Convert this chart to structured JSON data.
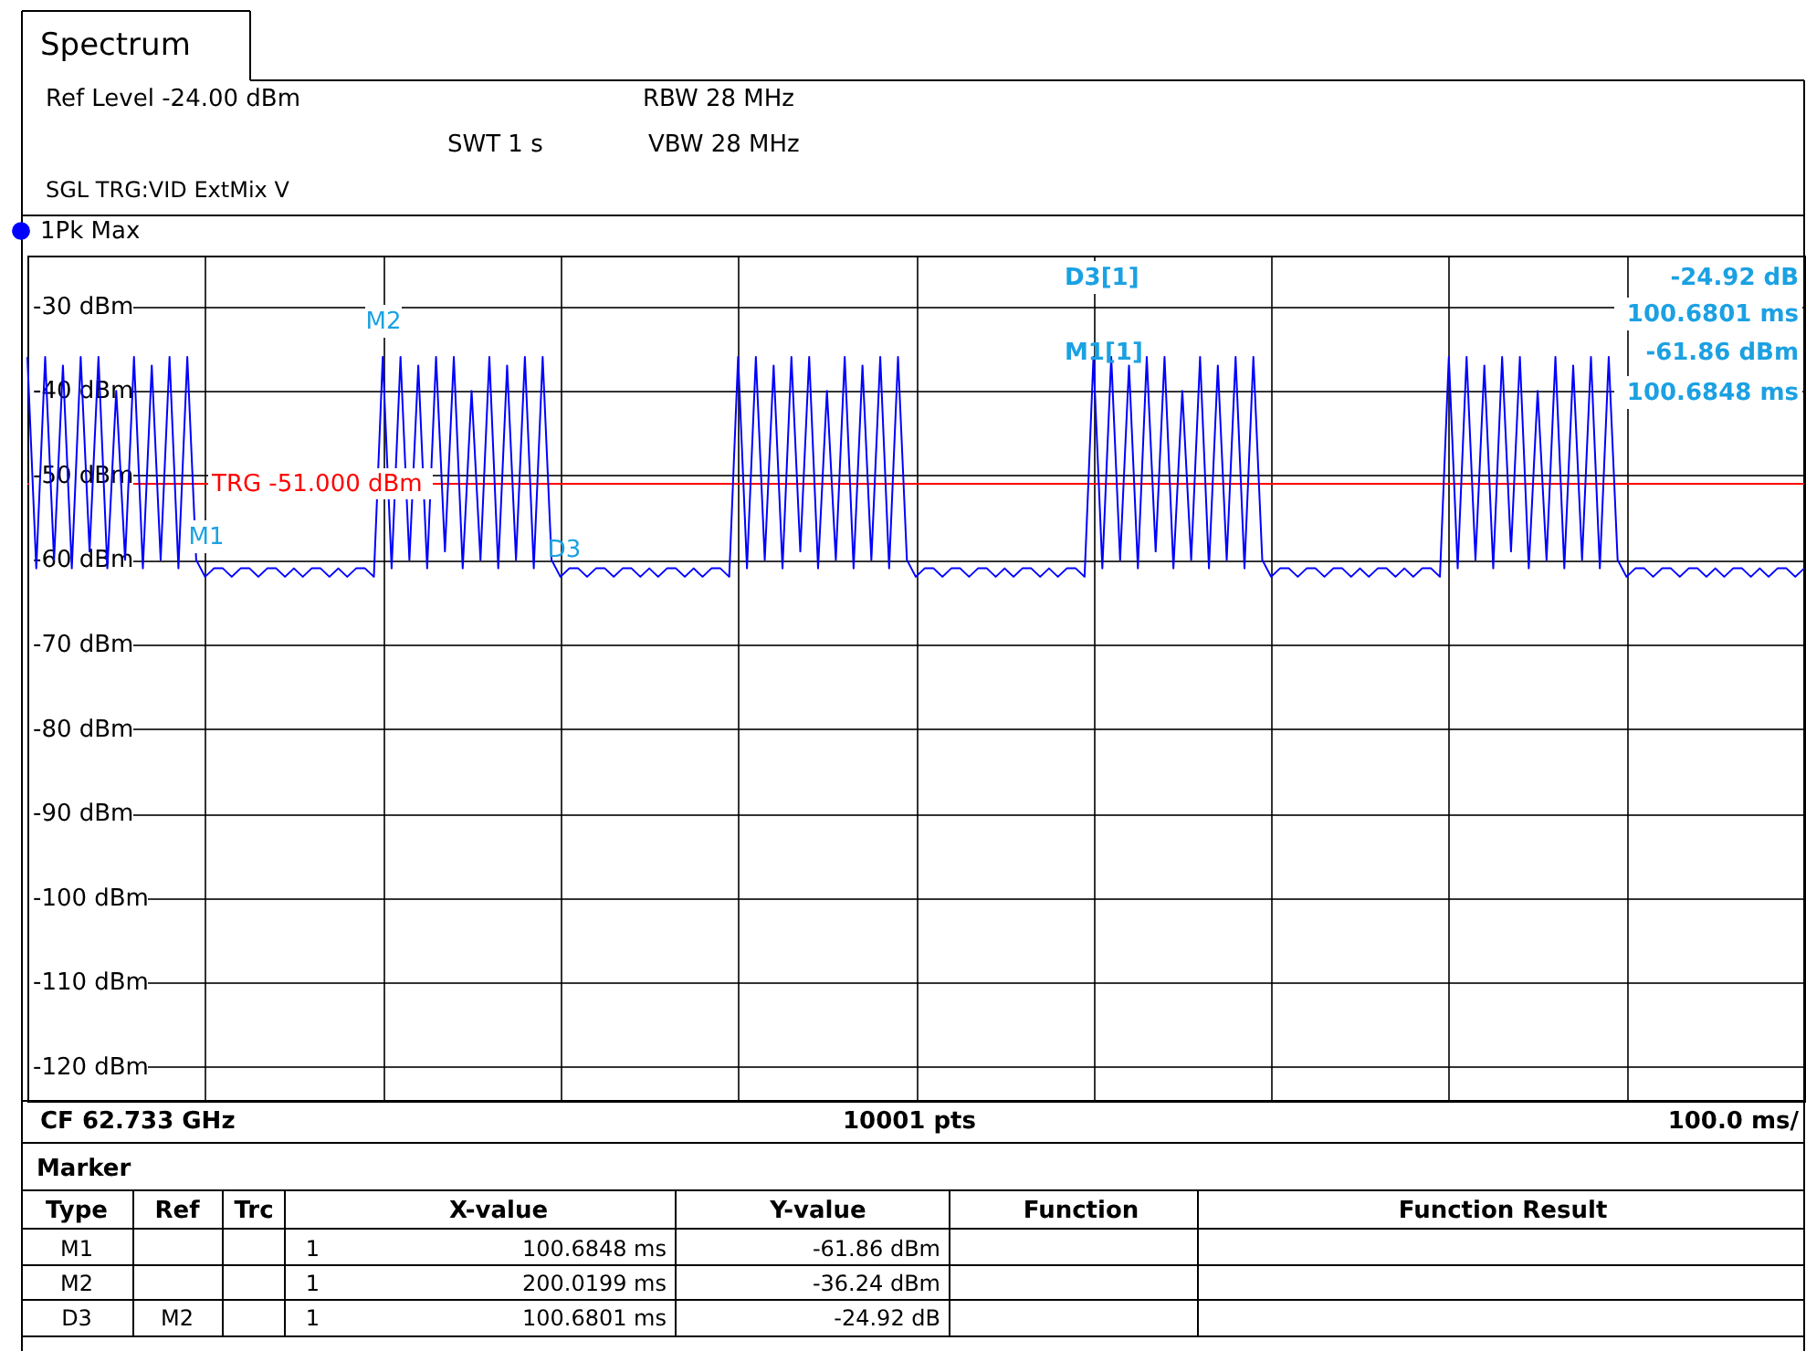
{
  "chart_data": {
    "type": "line",
    "title": "Spectrum",
    "categories": [
      null,
      null,
      null,
      null,
      null,
      null,
      null,
      null,
      null,
      null,
      null,
      null,
      null,
      null,
      null,
      null,
      null,
      null,
      null,
      null,
      null,
      null,
      null,
      null,
      null,
      null,
      null,
      null,
      null,
      null,
      null,
      null,
      null,
      null,
      null,
      null,
      null,
      null,
      null,
      null,
      null,
      null,
      null,
      null,
      null,
      null,
      null,
      null,
      null,
      null,
      null,
      null,
      null,
      null,
      null,
      null,
      null,
      null,
      null,
      null,
      null,
      null,
      null,
      null,
      null,
      null,
      null,
      null,
      null,
      null,
      null,
      null,
      null,
      null,
      null,
      null,
      null,
      null,
      null,
      null,
      null,
      null,
      null,
      null,
      null,
      null,
      null,
      null,
      null,
      null,
      null,
      null,
      null,
      null,
      null,
      null,
      null,
      null,
      null,
      null,
      null,
      null,
      null,
      null,
      null,
      null,
      null,
      null,
      null,
      null,
      null,
      null,
      null,
      null,
      null,
      null,
      null,
      null,
      null,
      null,
      null,
      null,
      null,
      null,
      null,
      null,
      null,
      null,
      null,
      null,
      null,
      null,
      null,
      null,
      null,
      null,
      null,
      null,
      null,
      null,
      null,
      null,
      null,
      null,
      null,
      null,
      null,
      null,
      null,
      null,
      null,
      null,
      null,
      null,
      null,
      null,
      null,
      null,
      null,
      null,
      null,
      null,
      null,
      null,
      null,
      null,
      null,
      null,
      null,
      null,
      null,
      null,
      null,
      null,
      null,
      null,
      null,
      null,
      null,
      null,
      null,
      null,
      null,
      null,
      null,
      null,
      null,
      null,
      null,
      null,
      null,
      null,
      null,
      null,
      null,
      null,
      null,
      null,
      null,
      null,
      null
    ],
    "series": [
      {
        "name": "1Pk Max",
        "color": "#0000ff",
        "values": [
          -36,
          -61,
          -36,
          -60,
          -37,
          -61,
          -36,
          -59,
          -36,
          -61,
          -40,
          -60,
          -36,
          -61,
          -37,
          -60,
          -36,
          -61,
          -36,
          -60,
          -62,
          -61,
          -61,
          -62,
          -61,
          -61,
          -62,
          -61,
          -61,
          -62,
          -61,
          -62,
          -61,
          -61,
          -62,
          -61,
          -62,
          -61,
          -61,
          -62,
          -36,
          -61,
          -36,
          -60,
          -37,
          -61,
          -36,
          -59,
          -36,
          -61,
          -40,
          -60,
          -36,
          -61,
          -37,
          -60,
          -36,
          -61,
          -36,
          -60,
          -62,
          -61,
          -61,
          -62,
          -61,
          -61,
          -62,
          -61,
          -61,
          -62,
          -61,
          -62,
          -61,
          -61,
          -62,
          -61,
          -62,
          -61,
          -61,
          -62,
          -36,
          -61,
          -36,
          -60,
          -37,
          -61,
          -36,
          -59,
          -36,
          -61,
          -40,
          -60,
          -36,
          -61,
          -37,
          -60,
          -36,
          -61,
          -36,
          -60,
          -62,
          -61,
          -61,
          -62,
          -61,
          -61,
          -62,
          -61,
          -61,
          -62,
          -61,
          -62,
          -61,
          -61,
          -62,
          -61,
          -62,
          -61,
          -61,
          -62,
          -36,
          -61,
          -36,
          -60,
          -37,
          -61,
          -36,
          -59,
          -36,
          -61,
          -40,
          -60,
          -36,
          -61,
          -37,
          -60,
          -36,
          -61,
          -36,
          -60,
          -62,
          -61,
          -61,
          -62,
          -61,
          -61,
          -62,
          -61,
          -61,
          -62,
          -61,
          -62,
          -61,
          -61,
          -62,
          -61,
          -62,
          -61,
          -61,
          -62,
          -36,
          -61,
          -36,
          -60,
          -37,
          -61,
          -36,
          -59,
          -36,
          -61,
          -40,
          -60,
          -36,
          -61,
          -37,
          -60,
          -36,
          -61,
          -36,
          -60,
          -62,
          -61,
          -61,
          -62,
          -61,
          -61,
          -62,
          -61,
          -61,
          -62,
          -61,
          -62,
          -61,
          -61,
          -62,
          -61,
          -62,
          -61,
          -61,
          -62,
          -61
        ]
      }
    ],
    "ylim": [
      -124,
      -24
    ],
    "yticks": [
      {
        "value": -30,
        "label": "-30 dBm"
      },
      {
        "value": -40,
        "label": "-40 dBm"
      },
      {
        "value": -50,
        "label": "-50 dBm"
      },
      {
        "value": -60,
        "label": "-60 dBm"
      },
      {
        "value": -70,
        "label": "-70 dBm"
      },
      {
        "value": -80,
        "label": "-80 dBm"
      },
      {
        "value": -90,
        "label": "-90 dBm"
      },
      {
        "value": -100,
        "label": "-100 dBm"
      },
      {
        "value": -110,
        "label": "-110 dBm"
      },
      {
        "value": -120,
        "label": "-120 dBm"
      }
    ],
    "tick_labels": "y",
    "grid": true,
    "legend": "top left",
    "marker": "none",
    "line_style": "solid",
    "ref_lines": [
      {
        "axis": "y",
        "value": -51,
        "label": "TRG -51.000 dBm",
        "color": "#ff0000"
      }
    ],
    "annotations": [
      "Ref Level -24.00 dBm",
      "RBW 28 MHz",
      "SWT 1 s",
      "VBW 28 MHz",
      "SGL TRG:VID ExtMix V",
      "D3[1]",
      "-24.92 dB",
      "100.6801 ms",
      "M1[1]",
      "-61.86 dBm",
      "100.6848 ms",
      "CF 62.733 GHz",
      "10001 pts",
      "100.0 ms/",
      "Marker",
      "Type",
      "Ref",
      "Trc",
      "X-value",
      "Y-value",
      "Function",
      "Function Result",
      "M1",
      "1",
      "100.6848 ms",
      "-61.86 dBm",
      "M2",
      "1",
      "200.0199 ms",
      "-36.24 dBm",
      "D3",
      "M2",
      "1",
      "100.6801 ms",
      "-24.92 dB",
      "M1",
      "M2",
      "D3"
    ]
  }
}
